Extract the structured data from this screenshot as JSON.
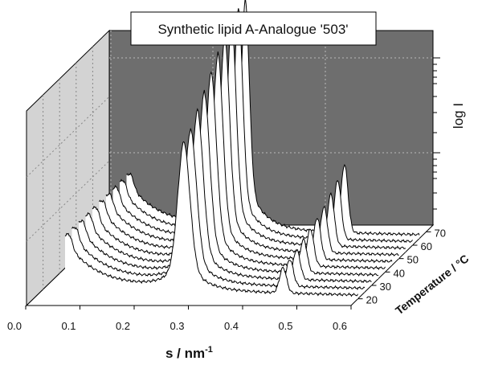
{
  "chart_data": {
    "type": "line",
    "title": "Synthetic lipid A-Analogue '503'",
    "xlabel": "s / nm",
    "xlabel_exponent": "-1",
    "ylabel": "log I",
    "zlabel": "Temperature / °C",
    "x_ticks": [
      "0.0",
      "0.1",
      "0.2",
      "0.3",
      "0.4",
      "0.5",
      "0.6"
    ],
    "z_ticks": [
      "20",
      "30",
      "40",
      "50",
      "60",
      "70"
    ],
    "xlim": [
      0.0,
      0.6
    ],
    "grid": true,
    "series": [
      {
        "temperature": 20,
        "peak_s": 0.279,
        "peak_log_i": 2.0,
        "second_peak_s": 0.462,
        "second_peak_log_i": 0.34
      },
      {
        "temperature": 25,
        "peak_s": 0.279,
        "peak_log_i": 2.07,
        "second_peak_s": 0.462,
        "second_peak_log_i": 0.36
      },
      {
        "temperature": 30,
        "peak_s": 0.279,
        "peak_log_i": 2.24,
        "second_peak_s": 0.462,
        "second_peak_log_i": 0.4
      },
      {
        "temperature": 35,
        "peak_s": 0.279,
        "peak_log_i": 2.4,
        "second_peak_s": 0.462,
        "second_peak_log_i": 0.45
      },
      {
        "temperature": 40,
        "peak_s": 0.279,
        "peak_log_i": 2.58,
        "second_peak_s": 0.462,
        "second_peak_log_i": 0.5
      },
      {
        "temperature": 45,
        "peak_s": 0.279,
        "peak_log_i": 2.74,
        "second_peak_s": 0.462,
        "second_peak_log_i": 0.56
      },
      {
        "temperature": 50,
        "peak_s": 0.279,
        "peak_log_i": 2.88,
        "second_peak_s": 0.462,
        "second_peak_log_i": 0.62
      },
      {
        "temperature": 55,
        "peak_s": 0.279,
        "peak_log_i": 3.0,
        "second_peak_s": 0.462,
        "second_peak_log_i": 0.7
      },
      {
        "temperature": 60,
        "peak_s": 0.279,
        "peak_log_i": 3.08,
        "second_peak_s": 0.462,
        "second_peak_log_i": 0.8
      },
      {
        "temperature": 65,
        "peak_s": 0.279,
        "peak_log_i": 3.1,
        "second_peak_s": 0.462,
        "second_peak_log_i": 0.92
      }
    ]
  }
}
